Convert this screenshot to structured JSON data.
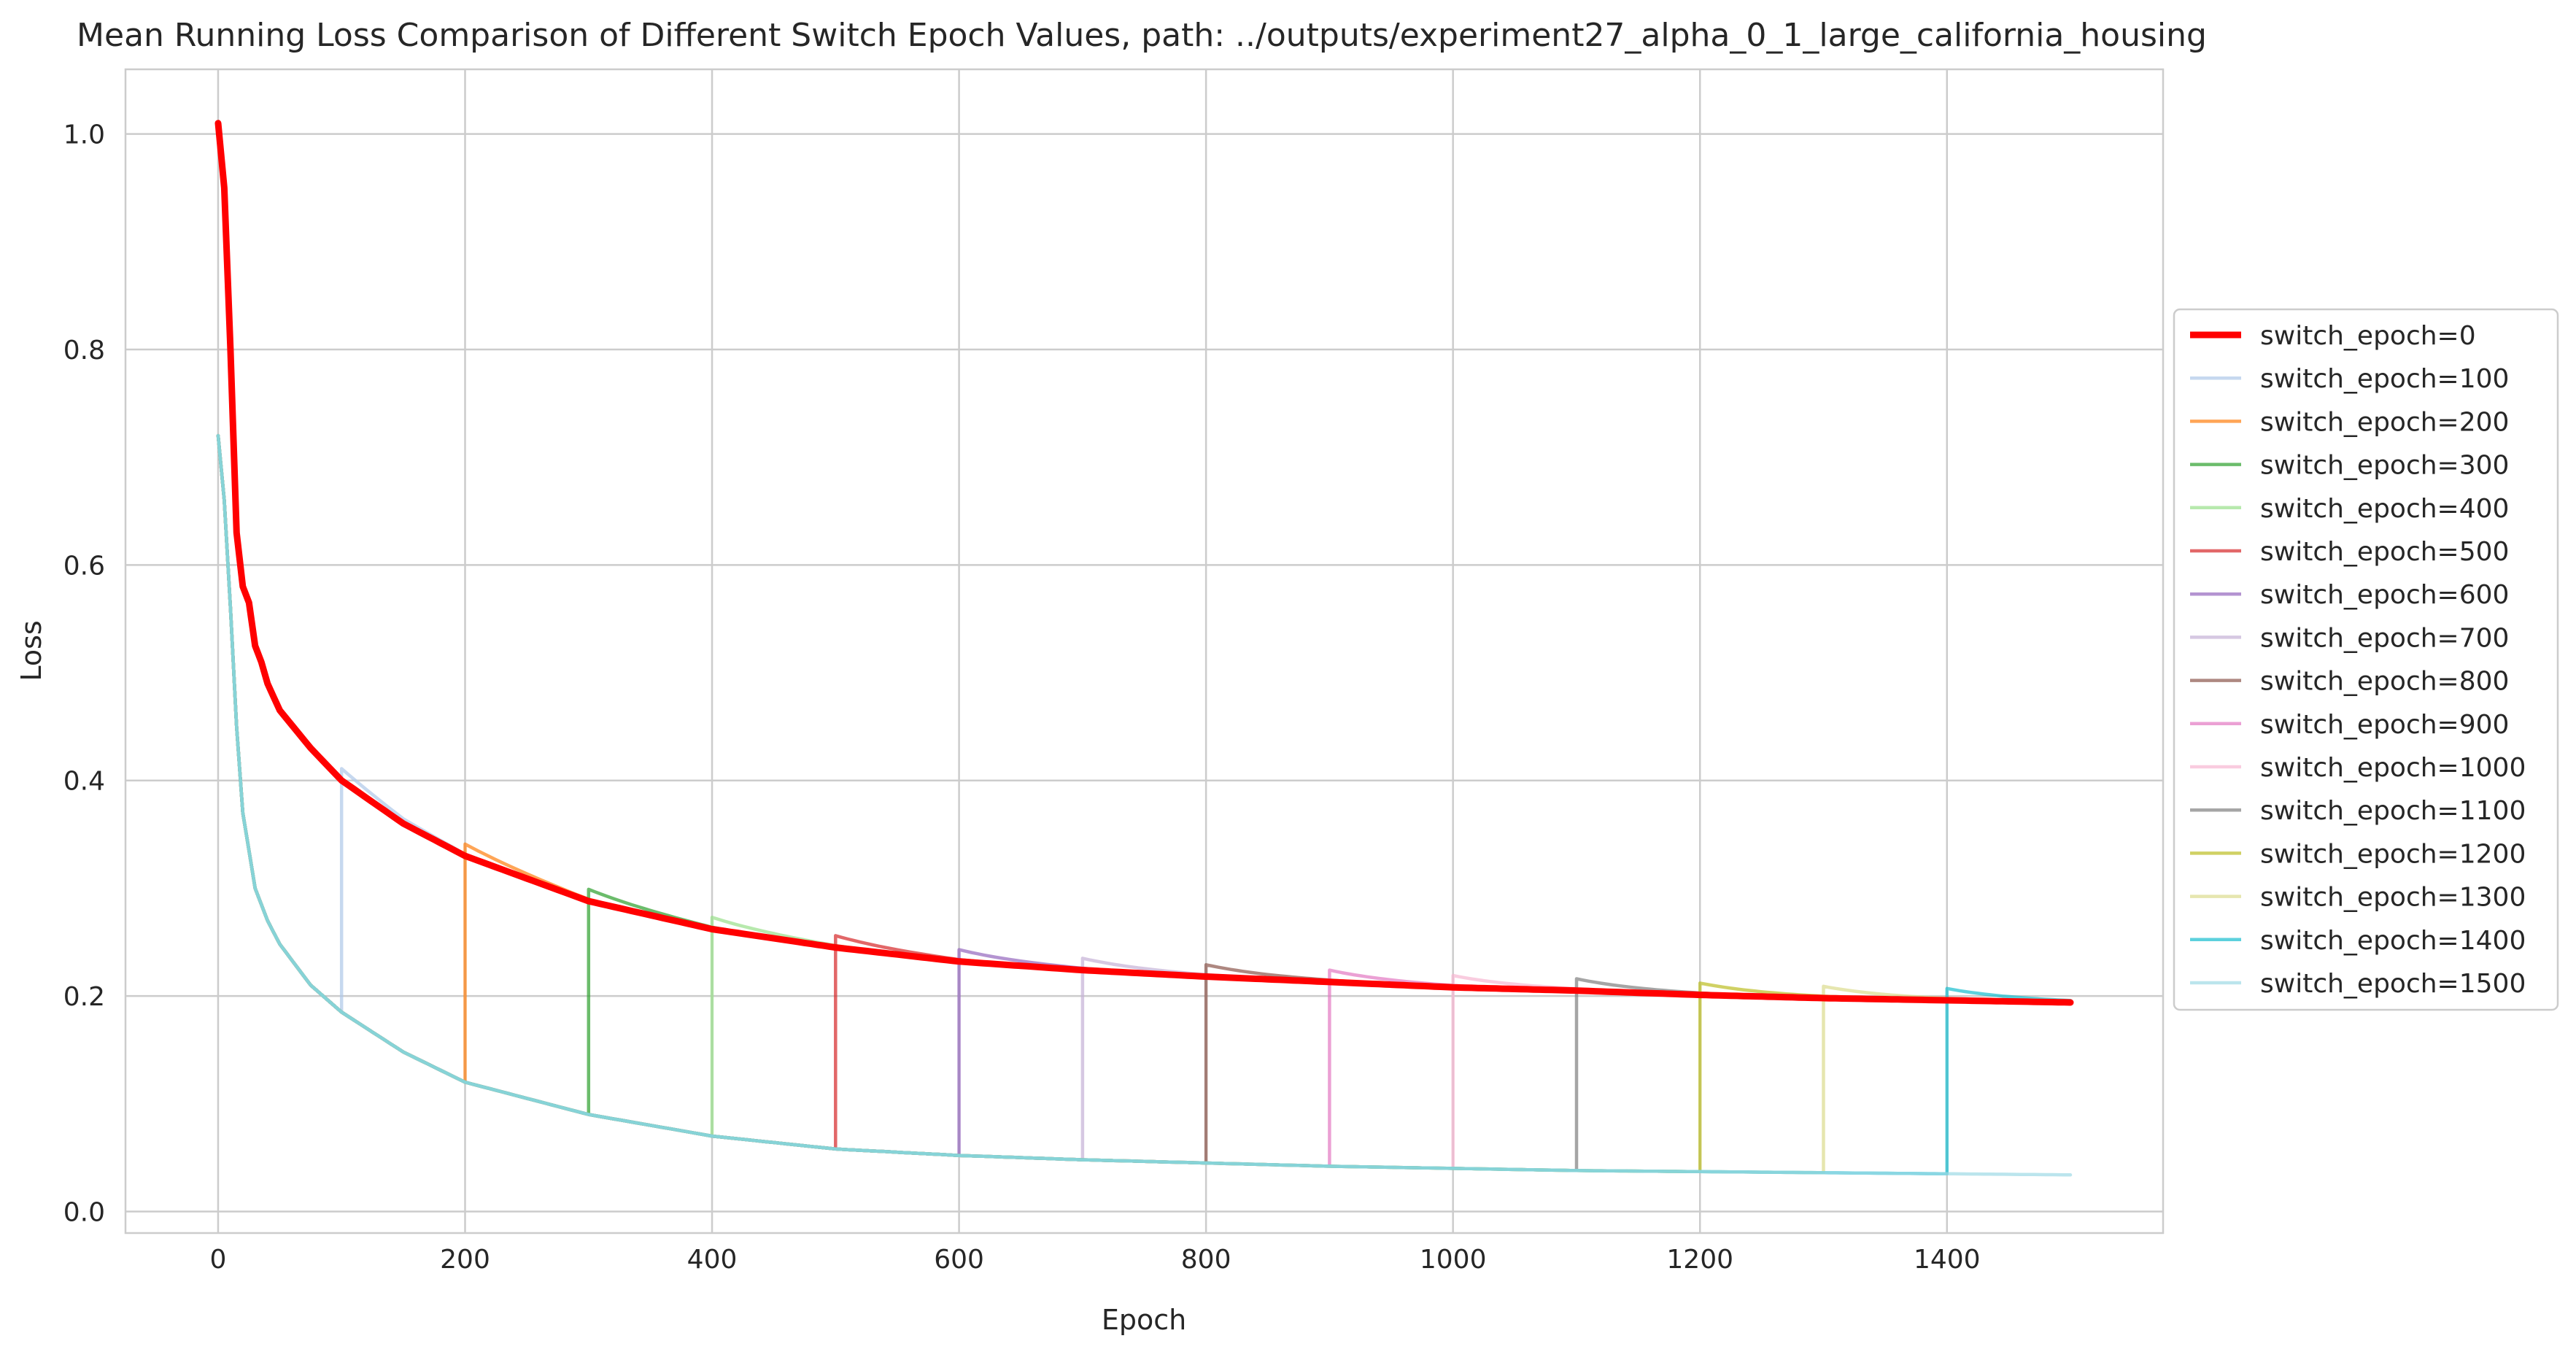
{
  "chart_data": {
    "type": "line",
    "title": "Mean Running Loss Comparison of Different Switch Epoch Values, path: ../outputs/experiment27_alpha_0_1_large_california_housing",
    "xlabel": "Epoch",
    "ylabel": "Loss",
    "xlim": [
      -75,
      1575
    ],
    "ylim": [
      -0.02,
      1.06
    ],
    "xticks": [
      0,
      200,
      400,
      600,
      800,
      1000,
      1200,
      1400
    ],
    "yticks": [
      0.0,
      0.2,
      0.4,
      0.6,
      0.8,
      1.0
    ],
    "xtick_labels": [
      "0",
      "200",
      "400",
      "600",
      "800",
      "1000",
      "1200",
      "1400"
    ],
    "ytick_labels": [
      "0.0",
      "0.2",
      "0.4",
      "0.6",
      "0.8",
      "1.0"
    ],
    "grid": true,
    "legend_position": "center-right outside",
    "x_max": 1500,
    "baseline_curve": {
      "x": [
        0,
        5,
        10,
        15,
        20,
        25,
        30,
        40,
        50,
        75,
        100,
        150,
        200,
        300,
        400,
        500,
        600,
        700,
        800,
        900,
        1000,
        1100,
        1200,
        1300,
        1400,
        1500
      ],
      "y": [
        0.72,
        0.66,
        0.56,
        0.45,
        0.37,
        0.335,
        0.3,
        0.27,
        0.248,
        0.21,
        0.185,
        0.148,
        0.12,
        0.09,
        0.07,
        0.058,
        0.052,
        0.048,
        0.045,
        0.042,
        0.04,
        0.038,
        0.037,
        0.036,
        0.035,
        0.034
      ]
    },
    "post_switch_curve": {
      "x": [
        0,
        5,
        10,
        15,
        20,
        25,
        30,
        35,
        40,
        50,
        75,
        100,
        150,
        200,
        300,
        400,
        500,
        600,
        700,
        800,
        900,
        1000,
        1100,
        1200,
        1300,
        1400,
        1500
      ],
      "y": [
        1.01,
        0.95,
        0.8,
        0.63,
        0.58,
        0.565,
        0.525,
        0.51,
        0.49,
        0.465,
        0.43,
        0.4,
        0.36,
        0.33,
        0.288,
        0.262,
        0.245,
        0.232,
        0.224,
        0.218,
        0.213,
        0.208,
        0.205,
        0.201,
        0.198,
        0.196,
        0.194
      ]
    },
    "spike_excess": 0.011,
    "series": [
      {
        "name": "switch_epoch=0",
        "switch_epoch": 0,
        "color": "#ff0000",
        "emphasis": true
      },
      {
        "name": "switch_epoch=100",
        "switch_epoch": 100,
        "color": "#aec7e8"
      },
      {
        "name": "switch_epoch=200",
        "switch_epoch": 200,
        "color": "#ff7f0e"
      },
      {
        "name": "switch_epoch=300",
        "switch_epoch": 300,
        "color": "#2ca02c"
      },
      {
        "name": "switch_epoch=400",
        "switch_epoch": 400,
        "color": "#98df8a"
      },
      {
        "name": "switch_epoch=500",
        "switch_epoch": 500,
        "color": "#d62728"
      },
      {
        "name": "switch_epoch=600",
        "switch_epoch": 600,
        "color": "#9467bd"
      },
      {
        "name": "switch_epoch=700",
        "switch_epoch": 700,
        "color": "#c5b0d5"
      },
      {
        "name": "switch_epoch=800",
        "switch_epoch": 800,
        "color": "#8c564b"
      },
      {
        "name": "switch_epoch=900",
        "switch_epoch": 900,
        "color": "#e377c2"
      },
      {
        "name": "switch_epoch=1000",
        "switch_epoch": 1000,
        "color": "#f7b6d2"
      },
      {
        "name": "switch_epoch=1100",
        "switch_epoch": 1100,
        "color": "#7f7f7f"
      },
      {
        "name": "switch_epoch=1200",
        "switch_epoch": 1200,
        "color": "#bcbd22"
      },
      {
        "name": "switch_epoch=1300",
        "switch_epoch": 1300,
        "color": "#dbdb8d"
      },
      {
        "name": "switch_epoch=1400",
        "switch_epoch": 1400,
        "color": "#17becf"
      },
      {
        "name": "switch_epoch=1500",
        "switch_epoch": 1500,
        "color": "#9edae5"
      }
    ]
  }
}
